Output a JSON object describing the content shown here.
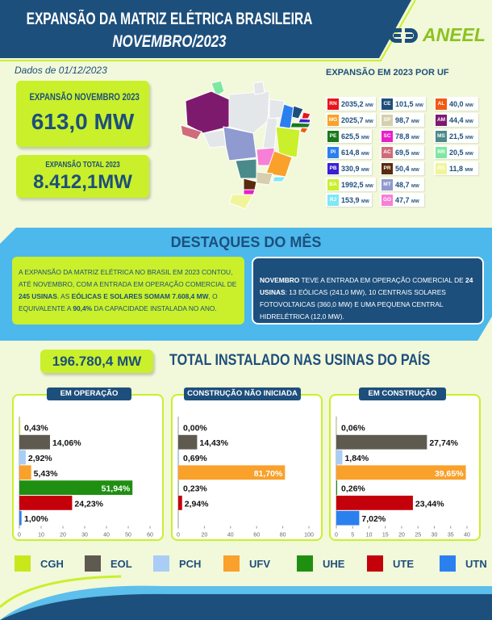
{
  "header": {
    "title": "EXPANSÃO DA MATRIZ ELÉTRICA BRASILEIRA",
    "subtitle": "NOVEMBRO/2023",
    "logo_text": "ANEEL"
  },
  "data_date": "Dados de 01/12/2023",
  "kpi": {
    "nov_label": "EXPANSÃO NOVEMBRO 2023",
    "nov_value": "613,0 MW",
    "total_label": "EXPANSÃO TOTAL 2023",
    "total_value": "8.412,1MW"
  },
  "uf_title": "EXPANSÃO EM 2023 POR UF",
  "unit": "MW",
  "uf": [
    {
      "uf": "RN",
      "value": "2035,2",
      "color": "#e8141c"
    },
    {
      "uf": "MG",
      "value": "2025,7",
      "color": "#f9a12b"
    },
    {
      "uf": "PE",
      "value": "625,5",
      "color": "#1a7a1a"
    },
    {
      "uf": "PI",
      "value": "614,8",
      "color": "#2b80f0"
    },
    {
      "uf": "PB",
      "value": "330,9",
      "color": "#3a1fd0"
    },
    {
      "uf": "BA",
      "value": "1992,5",
      "color": "#c9f02a"
    },
    {
      "uf": "RJ",
      "value": "153,9",
      "color": "#7fe7f8"
    },
    {
      "uf": "CE",
      "value": "101,5",
      "color": "#1d4f7c"
    },
    {
      "uf": "SP",
      "value": "98,7",
      "color": "#d6cfae"
    },
    {
      "uf": "SC",
      "value": "78,8",
      "color": "#e91fc9"
    },
    {
      "uf": "AC",
      "value": "69,5",
      "color": "#cf6b7a"
    },
    {
      "uf": "PR",
      "value": "50,4",
      "color": "#5a2a0c"
    },
    {
      "uf": "MT",
      "value": "48,7",
      "color": "#8e9ad0"
    },
    {
      "uf": "GO",
      "value": "47,7",
      "color": "#f77fd6"
    },
    {
      "uf": "AL",
      "value": "40,0",
      "color": "#f25a12"
    },
    {
      "uf": "AM",
      "value": "44,4",
      "color": "#7d1a6e"
    },
    {
      "uf": "MS",
      "value": "21,5",
      "color": "#4b8a8a"
    },
    {
      "uf": "RR",
      "value": "20,5",
      "color": "#7ee8a0"
    },
    {
      "uf": "RS",
      "value": "11,8",
      "color": "#f1f59a"
    }
  ],
  "highlights": {
    "title": "DESTAQUES DO MÊS",
    "left": [
      "A EXPANSÃO DA MATRIZ ELÉTRICA NO BRASIL EM 2023 CONTOU, ATÉ NOVEMBRO, COM A ENTRADA EM OPERAÇÃO COMERCIAL DE ",
      "245 USINAS",
      ". AS ",
      "EÓLICAS E SOLARES SOMAM 7.608,4 MW",
      ", O EQUIVALENTE A ",
      "90,4%",
      " DA CAPACIDADE INSTALADA NO ANO."
    ],
    "right": [
      "NOVEMBRO",
      " TEVE A ENTRADA EM OPERAÇÃO COMERCIAL DE ",
      "24 USINAS",
      ": 13 EÓLICAS (241,0 MW), 10 CENTRAIS SOLARES FOTOVOLTAICAS (360,0 MW) E UMA PEQUENA CENTRAL HIDRELÉTRICA (12,0 MW)."
    ]
  },
  "installed": {
    "value": "196.780,4 MW",
    "label": "TOTAL INSTALADO NAS USINAS DO PAÍS"
  },
  "chart_data": [
    {
      "type": "bar",
      "title": "EM OPERAÇÃO",
      "categories": [
        "CGH",
        "EOL",
        "PCH",
        "UFV",
        "UHE",
        "UTE",
        "UTN"
      ],
      "values": [
        0.43,
        14.06,
        2.92,
        5.43,
        51.94,
        24.23,
        1.0
      ],
      "labels": [
        "0,43%",
        "14,06%",
        "2,92%",
        "5,43%",
        "51,94%",
        "24,23%",
        "1,00%"
      ],
      "xlim": [
        0,
        60
      ],
      "ticks": [
        0,
        10,
        20,
        30,
        40,
        50,
        60
      ]
    },
    {
      "type": "bar",
      "title": "CONSTRUÇÃO NÃO INICIADA",
      "categories": [
        "CGH",
        "EOL",
        "PCH",
        "UFV",
        "UHE",
        "UTE",
        "UTN"
      ],
      "values": [
        0.0,
        14.43,
        0.69,
        81.7,
        0.23,
        2.94,
        0
      ],
      "labels": [
        "0,00%",
        "14,43%",
        "0,69%",
        "81,70%",
        "0,23%",
        "2,94%",
        ""
      ],
      "xlim": [
        0,
        100
      ],
      "ticks": [
        0,
        20,
        40,
        60,
        80,
        100
      ]
    },
    {
      "type": "bar",
      "title": "EM CONSTRUÇÃO",
      "categories": [
        "CGH",
        "EOL",
        "PCH",
        "UFV",
        "UHE",
        "UTE",
        "UTN"
      ],
      "values": [
        0.06,
        27.74,
        1.84,
        39.65,
        0.26,
        23.44,
        7.02
      ],
      "labels": [
        "0,06%",
        "27,74%",
        "1,84%",
        "39,65%",
        "0,26%",
        "23,44%",
        "7,02%"
      ],
      "xlim": [
        0,
        40
      ],
      "ticks": [
        0,
        5,
        10,
        15,
        20,
        25,
        30,
        35,
        40
      ]
    }
  ],
  "legend": [
    {
      "name": "CGH",
      "color": "#c8e81c"
    },
    {
      "name": "EOL",
      "color": "#5e5a4f"
    },
    {
      "name": "PCH",
      "color": "#a9cdf5"
    },
    {
      "name": "UFV",
      "color": "#f9a12b"
    },
    {
      "name": "UHE",
      "color": "#1f8f12"
    },
    {
      "name": "UTE",
      "color": "#c4000b"
    },
    {
      "name": "UTN",
      "color": "#2b80f0"
    }
  ]
}
